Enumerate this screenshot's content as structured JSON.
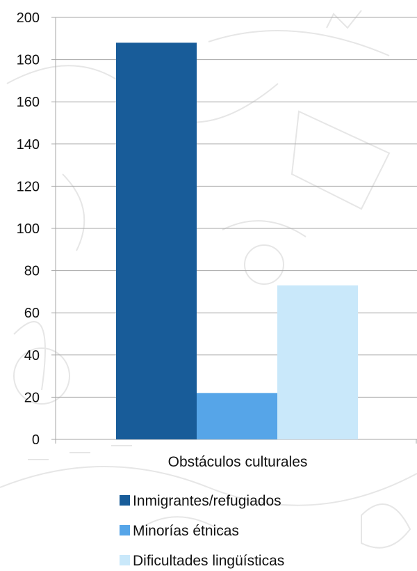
{
  "chart_data": {
    "type": "bar",
    "categories": [
      "Obstáculos culturales"
    ],
    "series": [
      {
        "name": "Inmigrantes/refugiados",
        "values": [
          188
        ],
        "color": "#185c99"
      },
      {
        "name": "Minorías étnicas",
        "values": [
          22
        ],
        "color": "#56a5e8"
      },
      {
        "name": "Dificultades lingüísticas",
        "values": [
          73
        ],
        "color": "#c9e8fa"
      }
    ],
    "ylim": [
      0,
      200
    ],
    "yticks": [
      0,
      20,
      40,
      60,
      80,
      100,
      120,
      140,
      160,
      180,
      200
    ],
    "grid": true,
    "legend_position": "bottom"
  },
  "colors": {
    "gridline": "#a6a6a6",
    "axis": "#a6a6a6",
    "background_doodle": "#e6e6e6"
  }
}
